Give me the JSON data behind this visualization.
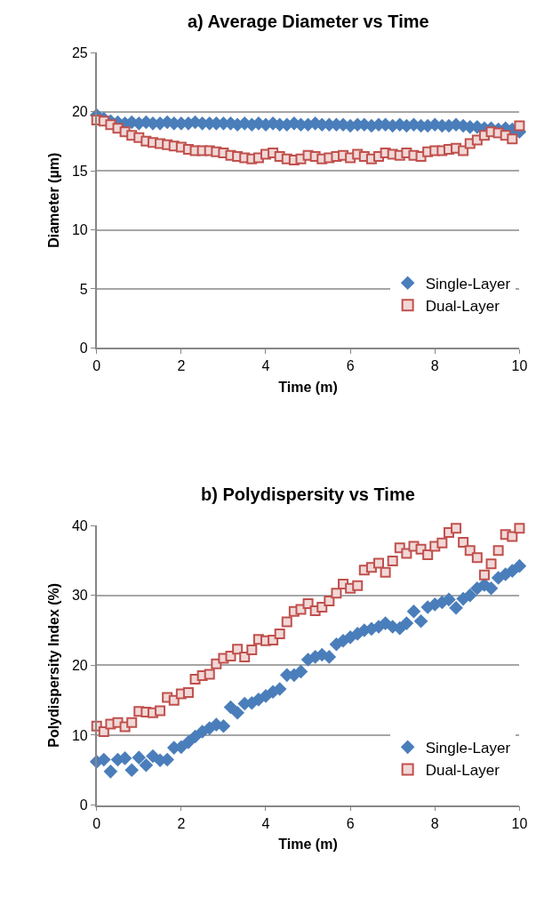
{
  "chart_data": [
    {
      "type": "scatter",
      "title": "a) Average Diameter vs Time",
      "xlabel": "Time (m)",
      "ylabel": "Diameter (µm)",
      "xlim": [
        0,
        10
      ],
      "xticks": [
        0,
        2,
        4,
        6,
        8,
        10
      ],
      "ylim": [
        0,
        25
      ],
      "yticks": [
        0,
        5,
        10,
        15,
        20,
        25
      ],
      "grid": "y",
      "legend": "right",
      "x": [
        0,
        0.17,
        0.33,
        0.5,
        0.67,
        0.83,
        1,
        1.17,
        1.33,
        1.5,
        1.67,
        1.83,
        2,
        2.17,
        2.33,
        2.5,
        2.67,
        2.83,
        3,
        3.17,
        3.33,
        3.5,
        3.67,
        3.83,
        4,
        4.17,
        4.33,
        4.5,
        4.67,
        4.83,
        5,
        5.17,
        5.33,
        5.5,
        5.67,
        5.83,
        6,
        6.17,
        6.33,
        6.5,
        6.67,
        6.83,
        7,
        7.17,
        7.33,
        7.5,
        7.67,
        7.83,
        8,
        8.17,
        8.33,
        8.5,
        8.67,
        8.83,
        9,
        9.17,
        9.33,
        9.5,
        9.67,
        9.83,
        10
      ],
      "series": [
        {
          "name": "Single-Layer",
          "color": "#4a7ebb",
          "marker": "diamond",
          "values": [
            19.7,
            19.4,
            19.2,
            19.1,
            19.0,
            19.1,
            19.0,
            19.1,
            19.0,
            19.0,
            19.1,
            19.0,
            19.0,
            19.0,
            19.1,
            19.0,
            19.0,
            19.0,
            19.0,
            19.0,
            18.9,
            19.0,
            18.9,
            19.0,
            18.9,
            19.0,
            18.9,
            18.9,
            19.0,
            18.9,
            18.9,
            19.0,
            18.9,
            18.9,
            18.9,
            18.9,
            18.8,
            18.9,
            18.9,
            18.8,
            18.9,
            18.9,
            18.8,
            18.9,
            18.8,
            18.9,
            18.8,
            18.8,
            18.9,
            18.8,
            18.8,
            18.9,
            18.8,
            18.7,
            18.7,
            18.6,
            18.6,
            18.5,
            18.6,
            18.5,
            18.3
          ]
        },
        {
          "name": "Dual-Layer",
          "color": "#c0504d",
          "marker": "square",
          "values": [
            19.3,
            19.2,
            18.9,
            18.6,
            18.3,
            18.0,
            17.8,
            17.5,
            17.4,
            17.3,
            17.2,
            17.1,
            17.0,
            16.8,
            16.7,
            16.7,
            16.7,
            16.6,
            16.5,
            16.3,
            16.2,
            16.1,
            16.0,
            16.1,
            16.4,
            16.5,
            16.2,
            16.0,
            15.9,
            16.0,
            16.3,
            16.2,
            16.0,
            16.1,
            16.2,
            16.3,
            16.1,
            16.4,
            16.2,
            16.0,
            16.2,
            16.5,
            16.4,
            16.3,
            16.5,
            16.3,
            16.2,
            16.6,
            16.7,
            16.7,
            16.8,
            16.9,
            16.7,
            17.3,
            17.6,
            18.0,
            18.3,
            18.2,
            18.0,
            17.7,
            18.8
          ]
        }
      ]
    },
    {
      "type": "scatter",
      "title": "b) Polydispersity vs Time",
      "xlabel": "Time (m)",
      "ylabel": "Polydispersity Index (%)",
      "xlim": [
        0,
        10
      ],
      "xticks": [
        0,
        2,
        4,
        6,
        8,
        10
      ],
      "ylim": [
        0,
        40
      ],
      "yticks": [
        0,
        10,
        20,
        30,
        40
      ],
      "grid": "y",
      "legend": "right",
      "x": [
        0,
        0.17,
        0.33,
        0.5,
        0.67,
        0.83,
        1,
        1.17,
        1.33,
        1.5,
        1.67,
        1.83,
        2,
        2.17,
        2.33,
        2.5,
        2.67,
        2.83,
        3,
        3.17,
        3.33,
        3.5,
        3.67,
        3.83,
        4,
        4.17,
        4.33,
        4.5,
        4.67,
        4.83,
        5,
        5.17,
        5.33,
        5.5,
        5.67,
        5.83,
        6,
        6.17,
        6.33,
        6.5,
        6.67,
        6.83,
        7,
        7.17,
        7.33,
        7.5,
        7.67,
        7.83,
        8,
        8.17,
        8.33,
        8.5,
        8.67,
        8.83,
        9,
        9.17,
        9.33,
        9.5,
        9.67,
        9.83,
        10
      ],
      "series": [
        {
          "name": "Single-Layer",
          "color": "#4a7ebb",
          "marker": "diamond",
          "values": [
            6.2,
            6.5,
            4.8,
            6.5,
            6.7,
            5.0,
            6.8,
            5.7,
            7.0,
            6.4,
            6.5,
            8.2,
            8.3,
            9.0,
            9.8,
            10.5,
            11.0,
            11.5,
            11.3,
            14.0,
            13.2,
            14.5,
            14.6,
            15.1,
            15.6,
            16.2,
            16.6,
            18.6,
            18.6,
            19.1,
            20.8,
            21.2,
            21.5,
            21.2,
            23.0,
            23.5,
            24.0,
            24.5,
            25.0,
            25.2,
            25.5,
            26.0,
            25.5,
            25.3,
            26.0,
            27.7,
            26.3,
            28.3,
            28.7,
            29.0,
            29.4,
            28.2,
            29.5,
            30.0,
            31.0,
            31.5,
            31.0,
            32.5,
            33.0,
            33.5,
            34.2
          ]
        },
        {
          "name": "Dual-Layer",
          "color": "#c0504d",
          "marker": "square",
          "values": [
            11.3,
            10.5,
            11.6,
            11.8,
            11.2,
            11.8,
            13.4,
            13.3,
            13.2,
            13.5,
            15.4,
            15.0,
            15.9,
            16.1,
            18.0,
            18.5,
            18.7,
            20.2,
            21.0,
            21.3,
            22.3,
            21.2,
            22.2,
            23.7,
            23.5,
            23.6,
            24.5,
            26.2,
            27.7,
            28.0,
            28.8,
            27.8,
            28.3,
            29.2,
            30.3,
            31.6,
            31.0,
            31.4,
            33.6,
            34.0,
            34.6,
            33.3,
            34.9,
            36.8,
            36.0,
            37.0,
            36.6,
            35.8,
            37.0,
            37.5,
            39.0,
            39.6,
            37.6,
            36.4,
            35.4,
            32.9,
            34.5,
            36.4,
            38.7,
            38.4,
            39.6
          ]
        }
      ]
    }
  ]
}
